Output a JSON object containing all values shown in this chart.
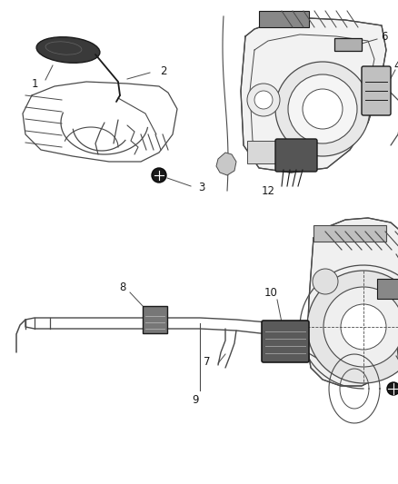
{
  "bg_color": "#ffffff",
  "line_color": "#4a4a4a",
  "dark_color": "#1a1a1a",
  "fig_width": 4.38,
  "fig_height": 5.33,
  "dpi": 100
}
